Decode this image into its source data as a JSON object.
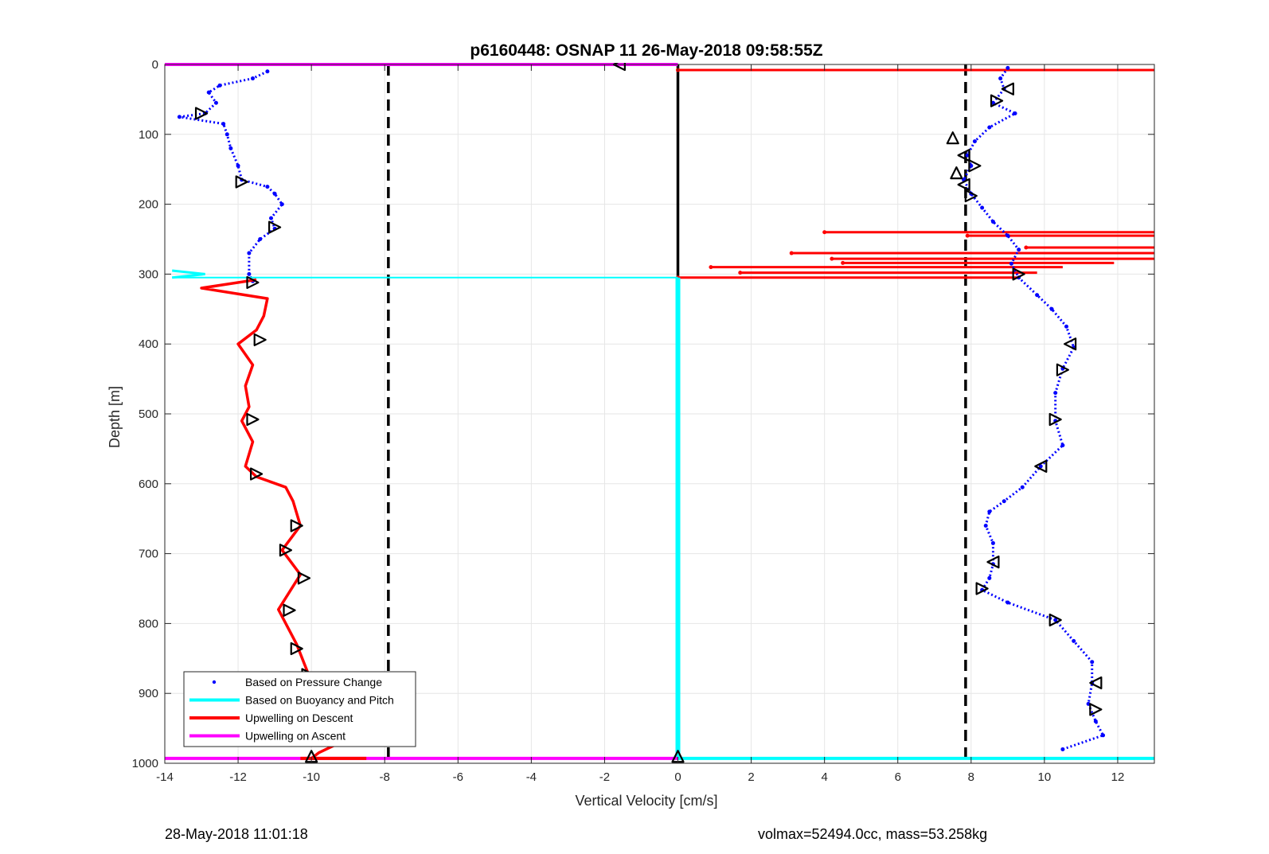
{
  "chart_data": {
    "type": "scatter",
    "title": "p6160448: OSNAP 11 26-May-2018 09:58:55Z",
    "xlabel": "Vertical Velocity [cm/s]",
    "ylabel": "Depth [m]",
    "xlim": [
      -14,
      13
    ],
    "ylim": [
      0,
      1000
    ],
    "y_reversed": true,
    "grid": true,
    "x_ticks": [
      -14,
      -12,
      -10,
      -8,
      -6,
      -4,
      -2,
      0,
      2,
      4,
      6,
      8,
      10,
      12
    ],
    "y_ticks": [
      0,
      100,
      200,
      300,
      400,
      500,
      600,
      700,
      800,
      900,
      1000
    ],
    "legend": {
      "placement": "bottom-left",
      "entries": [
        {
          "label": "Based on Pressure Change",
          "color": "#0000ff",
          "style": "marker"
        },
        {
          "label": "Based on Buoyancy and Pitch",
          "color": "#00ffff",
          "style": "line"
        },
        {
          "label": "Upwelling on Descent",
          "color": "#ff0000",
          "style": "line"
        },
        {
          "label": "Upwelling on Ascent",
          "color": "#ff00ff",
          "style": "line"
        }
      ]
    },
    "reference_lines": [
      {
        "x": -7.9,
        "style": "dashed",
        "color": "#000000"
      },
      {
        "x": 7.85,
        "style": "dashed",
        "color": "#000000"
      },
      {
        "x": 0,
        "y_range": [
          0,
          305
        ],
        "style": "solid",
        "color": "#000000"
      }
    ],
    "series": [
      {
        "name": "Based on Pressure Change",
        "role": "pressure-descent",
        "color": "#0000ff",
        "points": [
          [
            -11.2,
            10
          ],
          [
            -11.6,
            20
          ],
          [
            -12.5,
            30
          ],
          [
            -12.8,
            40
          ],
          [
            -12.6,
            55
          ],
          [
            -12.9,
            70
          ],
          [
            -13.6,
            75
          ],
          [
            -12.4,
            85
          ],
          [
            -12.3,
            100
          ],
          [
            -12.2,
            120
          ],
          [
            -12.0,
            145
          ],
          [
            -11.9,
            165
          ],
          [
            -11.2,
            175
          ],
          [
            -11.0,
            185
          ],
          [
            -10.8,
            200
          ],
          [
            -11.1,
            220
          ],
          [
            -11.0,
            235
          ],
          [
            -11.4,
            250
          ],
          [
            -11.7,
            270
          ],
          [
            -11.7,
            300
          ],
          [
            -11.6,
            310
          ]
        ]
      },
      {
        "name": "Based on Pressure Change",
        "role": "pressure-ascent",
        "color": "#0000ff",
        "points": [
          [
            9.0,
            5
          ],
          [
            8.8,
            20
          ],
          [
            8.9,
            35
          ],
          [
            8.6,
            55
          ],
          [
            9.2,
            70
          ],
          [
            8.5,
            90
          ],
          [
            8.1,
            110
          ],
          [
            7.9,
            130
          ],
          [
            8.0,
            145
          ],
          [
            7.8,
            165
          ],
          [
            8.0,
            185
          ],
          [
            8.3,
            205
          ],
          [
            8.6,
            225
          ],
          [
            9.0,
            245
          ],
          [
            9.3,
            265
          ],
          [
            9.1,
            285
          ],
          [
            9.3,
            305
          ],
          [
            9.8,
            330
          ],
          [
            10.2,
            350
          ],
          [
            10.6,
            375
          ],
          [
            10.8,
            405
          ],
          [
            10.5,
            435
          ],
          [
            10.3,
            470
          ],
          [
            10.3,
            510
          ],
          [
            10.5,
            545
          ],
          [
            9.9,
            575
          ],
          [
            9.4,
            605
          ],
          [
            8.9,
            625
          ],
          [
            8.5,
            640
          ],
          [
            8.4,
            660
          ],
          [
            8.6,
            685
          ],
          [
            8.6,
            715
          ],
          [
            8.5,
            735
          ],
          [
            8.3,
            752
          ],
          [
            9.0,
            770
          ],
          [
            10.3,
            795
          ],
          [
            10.8,
            825
          ],
          [
            11.3,
            855
          ],
          [
            11.3,
            885
          ],
          [
            11.2,
            915
          ],
          [
            11.4,
            940
          ],
          [
            11.6,
            960
          ],
          [
            10.5,
            980
          ]
        ]
      },
      {
        "name": "Upwelling on Descent",
        "role": "upwelling-descent",
        "color": "#ff0000",
        "points": [
          [
            -11.5,
            308
          ],
          [
            -13.0,
            320
          ],
          [
            -11.2,
            335
          ],
          [
            -11.3,
            360
          ],
          [
            -11.5,
            380
          ],
          [
            -12.0,
            400
          ],
          [
            -11.6,
            430
          ],
          [
            -11.8,
            460
          ],
          [
            -11.7,
            490
          ],
          [
            -11.9,
            510
          ],
          [
            -11.6,
            540
          ],
          [
            -11.8,
            575
          ],
          [
            -11.5,
            590
          ],
          [
            -10.7,
            605
          ],
          [
            -10.5,
            625
          ],
          [
            -10.3,
            660
          ],
          [
            -10.8,
            695
          ],
          [
            -10.3,
            730
          ],
          [
            -10.9,
            780
          ],
          [
            -10.4,
            830
          ],
          [
            -10.1,
            870
          ],
          [
            -9.2,
            905
          ],
          [
            -9.2,
            935
          ],
          [
            -8.8,
            960
          ],
          [
            -9.8,
            985
          ],
          [
            -10.0,
            993
          ]
        ]
      },
      {
        "name": "Based on Buoyancy and Pitch",
        "role": "buoyancy-pitch",
        "color": "#00ffff",
        "points": [
          [
            -13.8,
            295
          ],
          [
            -12.9,
            300
          ],
          [
            -13.8,
            305
          ],
          [
            0,
            305
          ],
          [
            0,
            993
          ]
        ]
      },
      {
        "name": "Upwelling on Ascent",
        "role": "upwelling-ascent",
        "color": "#ff00ff",
        "points": [
          [
            -14,
            0
          ],
          [
            0,
            0
          ],
          [
            -14,
            993
          ],
          [
            0,
            993
          ]
        ]
      }
    ],
    "markers": [
      {
        "x": -13.0,
        "y": 70,
        "dir": "right"
      },
      {
        "x": -11.9,
        "y": 168,
        "dir": "right"
      },
      {
        "x": -11.0,
        "y": 233,
        "dir": "right"
      },
      {
        "x": -11.6,
        "y": 312,
        "dir": "right"
      },
      {
        "x": -11.4,
        "y": 394,
        "dir": "right"
      },
      {
        "x": -11.6,
        "y": 508,
        "dir": "right"
      },
      {
        "x": -11.5,
        "y": 586,
        "dir": "right"
      },
      {
        "x": -10.4,
        "y": 660,
        "dir": "right"
      },
      {
        "x": -10.7,
        "y": 695,
        "dir": "right"
      },
      {
        "x": -10.2,
        "y": 735,
        "dir": "right"
      },
      {
        "x": -10.6,
        "y": 781,
        "dir": "right"
      },
      {
        "x": -10.4,
        "y": 836,
        "dir": "right"
      },
      {
        "x": -10.1,
        "y": 873,
        "dir": "right"
      },
      {
        "x": -8.8,
        "y": 958,
        "dir": "right"
      },
      {
        "x": -10.0,
        "y": 990,
        "dir": "up"
      },
      {
        "x": -1.6,
        "y": 0,
        "dir": "left"
      },
      {
        "x": 0,
        "y": 990,
        "dir": "up"
      },
      {
        "x": 9.0,
        "y": 35,
        "dir": "left"
      },
      {
        "x": 8.7,
        "y": 52,
        "dir": "right"
      },
      {
        "x": 7.5,
        "y": 105,
        "dir": "up"
      },
      {
        "x": 7.8,
        "y": 130,
        "dir": "left"
      },
      {
        "x": 8.1,
        "y": 145,
        "dir": "right"
      },
      {
        "x": 7.6,
        "y": 155,
        "dir": "up"
      },
      {
        "x": 7.8,
        "y": 172,
        "dir": "left"
      },
      {
        "x": 8.0,
        "y": 188,
        "dir": "right"
      },
      {
        "x": 9.3,
        "y": 300,
        "dir": "right"
      },
      {
        "x": 10.7,
        "y": 400,
        "dir": "left"
      },
      {
        "x": 10.5,
        "y": 437,
        "dir": "right"
      },
      {
        "x": 10.3,
        "y": 508,
        "dir": "right"
      },
      {
        "x": 9.9,
        "y": 575,
        "dir": "left"
      },
      {
        "x": 8.6,
        "y": 712,
        "dir": "left"
      },
      {
        "x": 8.3,
        "y": 750,
        "dir": "right"
      },
      {
        "x": 10.3,
        "y": 795,
        "dir": "right"
      },
      {
        "x": 11.4,
        "y": 885,
        "dir": "left"
      },
      {
        "x": 11.4,
        "y": 923,
        "dir": "right"
      }
    ],
    "spikes": [
      {
        "y": 8,
        "x0": 0,
        "x1": 13
      },
      {
        "y": 240,
        "x0": 4.0,
        "x1": 13
      },
      {
        "y": 245,
        "x0": 7.9,
        "x1": 13
      },
      {
        "y": 262,
        "x0": 9.5,
        "x1": 13
      },
      {
        "y": 270,
        "x0": 3.1,
        "x1": 13
      },
      {
        "y": 278,
        "x0": 4.2,
        "x1": 13
      },
      {
        "y": 284,
        "x0": 4.5,
        "x1": 11.9
      },
      {
        "y": 290,
        "x0": 0.9,
        "x1": 10.5
      },
      {
        "y": 298,
        "x0": 1.7,
        "x1": 9.8
      },
      {
        "y": 305,
        "x0": 0,
        "x1": 9.3
      }
    ]
  },
  "footer": {
    "timestamp": "28-May-2018 11:01:18",
    "volmax_mass": "volmax=52494.0cc, mass=53.258kg"
  }
}
